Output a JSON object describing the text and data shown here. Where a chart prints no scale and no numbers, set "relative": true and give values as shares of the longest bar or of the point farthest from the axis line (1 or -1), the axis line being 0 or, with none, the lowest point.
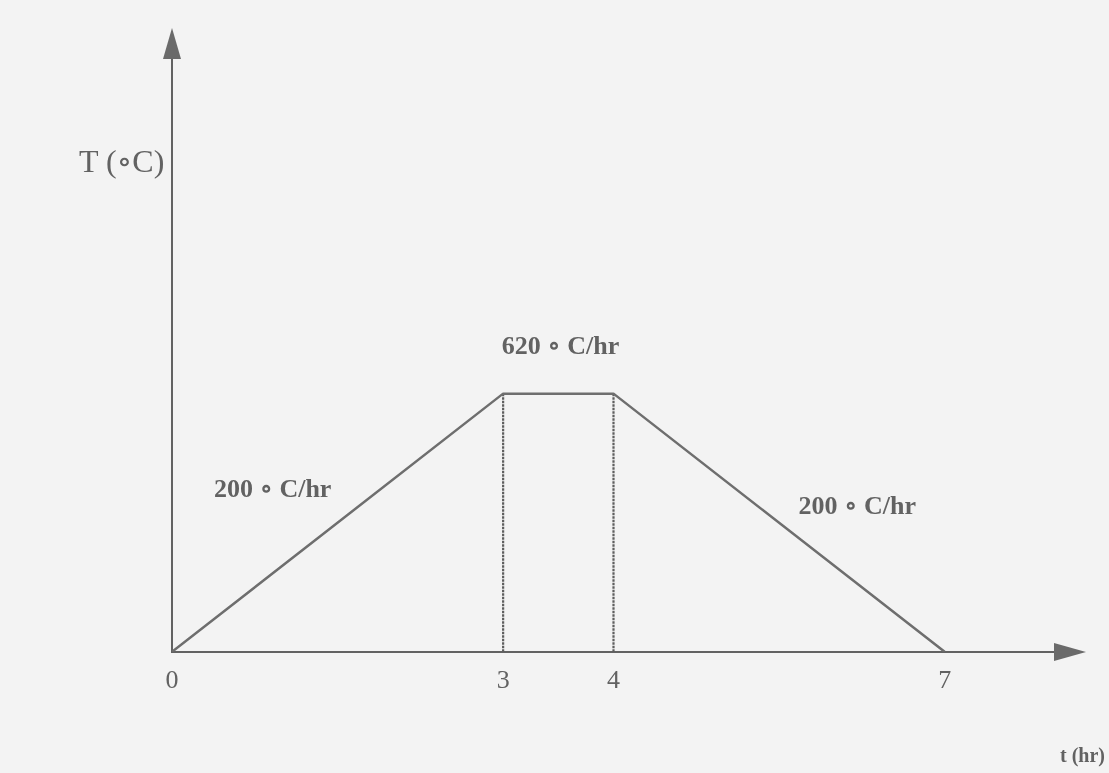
{
  "chart_data": {
    "type": "line",
    "x": [
      0,
      3,
      4,
      7
    ],
    "relative": true,
    "xlim": [
      0,
      8
    ],
    "xticks": [
      0,
      3,
      4,
      7
    ],
    "xlabel": "t (hr)",
    "tick_labels": "x",
    "marker": "none",
    "series": [
      {
        "color": "#6e6e6e",
        "values": [
          0,
          1,
          1,
          0
        ]
      }
    ],
    "ref_lines": [
      {
        "axis": "x",
        "value": 3,
        "color": "#5e5e5e",
        "line_style": "dotted"
      },
      {
        "axis": "x",
        "value": 4,
        "color": "#5e5e5e",
        "line_style": "dotted"
      }
    ],
    "annotations": [
      "T (∘C)",
      "200 ∘ C/hr",
      "620 ∘ C/hr",
      "200 ∘ C/hr"
    ]
  }
}
